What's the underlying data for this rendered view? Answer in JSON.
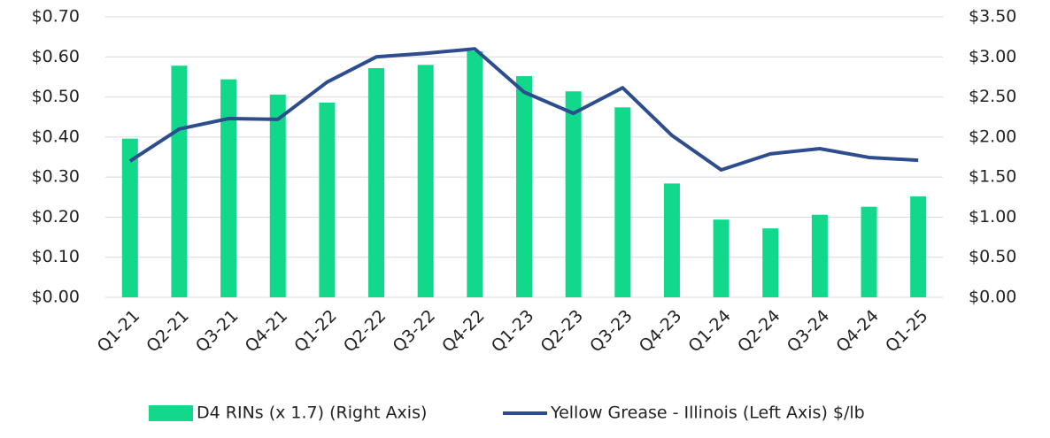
{
  "chart_data": {
    "type": "bar_line",
    "categories": [
      "Q1-21",
      "Q2-21",
      "Q3-21",
      "Q4-21",
      "Q1-22",
      "Q2-22",
      "Q3-22",
      "Q4-22",
      "Q1-23",
      "Q2-23",
      "Q3-23",
      "Q4-23",
      "Q1-24",
      "Q2-24",
      "Q3-24",
      "Q4-24",
      "Q1-25"
    ],
    "series": [
      {
        "name": "D4 RINs (x 1.7) (Right Axis)",
        "type": "bar",
        "axis": "y2",
        "color": "#12d88c",
        "values": [
          1.98,
          2.89,
          2.72,
          2.53,
          2.43,
          2.86,
          2.9,
          3.07,
          2.76,
          2.57,
          2.37,
          1.42,
          0.97,
          0.86,
          1.03,
          1.13,
          1.26
        ]
      },
      {
        "name": "Yellow Grease - Illinois (Left Axis) $/lb",
        "type": "line",
        "color": "#2d4d8e",
        "values": [
          0.34,
          0.42,
          0.446,
          0.444,
          0.537,
          0.6,
          0.609,
          0.62,
          0.512,
          0.459,
          0.523,
          0.404,
          0.318,
          0.358,
          0.371,
          0.349,
          0.342
        ]
      }
    ],
    "ylim": [
      0,
      0.7
    ],
    "yticks": [
      {
        "value": 0,
        "label": "$0.00"
      },
      {
        "value": 0.1,
        "label": "$0.10"
      },
      {
        "value": 0.2,
        "label": "$0.20"
      },
      {
        "value": 0.3,
        "label": "$0.30"
      },
      {
        "value": 0.4,
        "label": "$0.40"
      },
      {
        "value": 0.5,
        "label": "$0.50"
      },
      {
        "value": 0.6,
        "label": "$0.60"
      },
      {
        "value": 0.7,
        "label": "$0.70"
      }
    ],
    "y2lim": [
      0,
      3.5
    ],
    "y2ticks": [
      {
        "value": 0,
        "label": "$0.00"
      },
      {
        "value": 0.5,
        "label": "$0.50"
      },
      {
        "value": 1,
        "label": "$1.00"
      },
      {
        "value": 1.5,
        "label": "$1.50"
      },
      {
        "value": 2,
        "label": "$2.00"
      },
      {
        "value": 2.5,
        "label": "$2.50"
      },
      {
        "value": 3,
        "label": "$3.00"
      },
      {
        "value": 3.5,
        "label": "$3.50"
      }
    ],
    "grid": true,
    "legend": "bottom"
  }
}
